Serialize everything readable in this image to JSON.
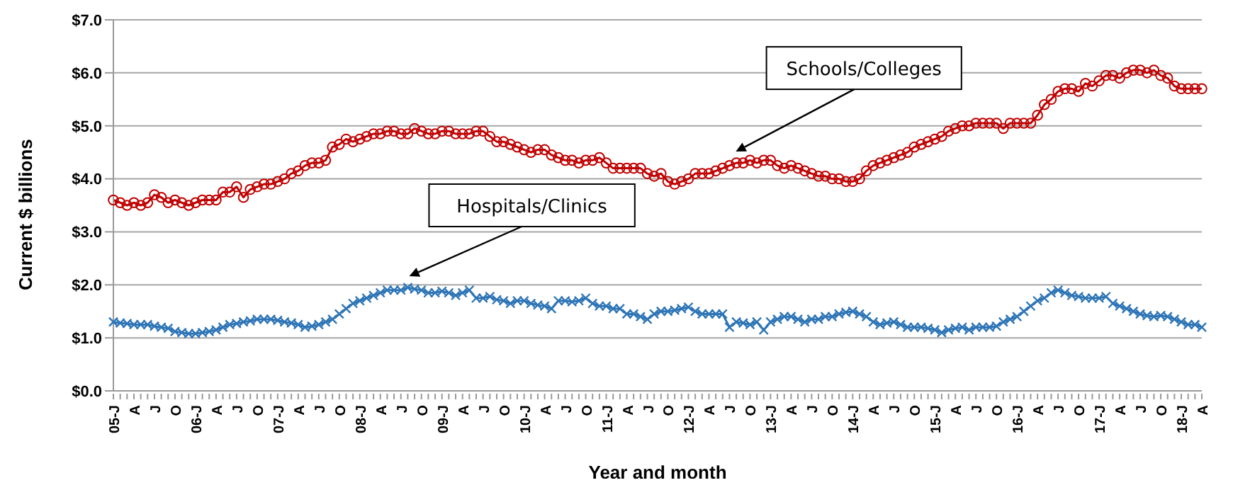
{
  "chart_data": {
    "type": "line",
    "xlabel": "Year and month",
    "ylabel": "Current $ billions",
    "categories": [
      "05-J",
      null,
      null,
      "A",
      null,
      null,
      "J",
      null,
      null,
      "O",
      null,
      null,
      "06-J",
      null,
      null,
      "A",
      null,
      null,
      "J",
      null,
      null,
      "O",
      null,
      null,
      "07-J",
      null,
      null,
      "A",
      null,
      null,
      "J",
      null,
      null,
      "O",
      null,
      null,
      "08-J",
      null,
      null,
      "A",
      null,
      null,
      "J",
      null,
      null,
      "O",
      null,
      null,
      "09-J",
      null,
      null,
      "A",
      null,
      null,
      "J",
      null,
      null,
      "O",
      null,
      null,
      "10-J",
      null,
      null,
      "A",
      null,
      null,
      "J",
      null,
      null,
      "O",
      null,
      null,
      "11-J",
      null,
      null,
      "A",
      null,
      null,
      "J",
      null,
      null,
      "O",
      null,
      null,
      "12-J",
      null,
      null,
      "A",
      null,
      null,
      "J",
      null,
      null,
      "O",
      null,
      null,
      "13-J",
      null,
      null,
      "A",
      null,
      null,
      "J",
      null,
      null,
      "O",
      null,
      null,
      "14-J",
      null,
      null,
      "A",
      null,
      null,
      "J",
      null,
      null,
      "O",
      null,
      null,
      "15-J",
      null,
      null,
      "A",
      null,
      null,
      "J",
      null,
      null,
      "O",
      null,
      null,
      "16-J",
      null,
      null,
      "A",
      null,
      null,
      "J",
      null,
      null,
      "O",
      null,
      null,
      "17-J",
      null,
      null,
      "A",
      null,
      null,
      "J",
      null,
      null,
      "O",
      null,
      null,
      "18-J",
      null,
      null,
      "A"
    ],
    "series": [
      {
        "name": "Schools/Colleges",
        "color": "#c00000",
        "marker": "circle",
        "values": [
          3.6,
          3.55,
          3.5,
          3.55,
          3.5,
          3.55,
          3.7,
          3.65,
          3.55,
          3.6,
          3.55,
          3.5,
          3.55,
          3.6,
          3.6,
          3.6,
          3.75,
          3.75,
          3.85,
          3.65,
          3.8,
          3.85,
          3.9,
          3.9,
          3.95,
          4.0,
          4.1,
          4.15,
          4.25,
          4.3,
          4.3,
          4.35,
          4.6,
          4.65,
          4.75,
          4.7,
          4.75,
          4.8,
          4.85,
          4.85,
          4.9,
          4.9,
          4.85,
          4.85,
          4.95,
          4.9,
          4.85,
          4.85,
          4.9,
          4.9,
          4.85,
          4.85,
          4.85,
          4.9,
          4.9,
          4.8,
          4.7,
          4.7,
          4.65,
          4.6,
          4.55,
          4.5,
          4.55,
          4.55,
          4.45,
          4.4,
          4.35,
          4.35,
          4.3,
          4.35,
          4.35,
          4.4,
          4.3,
          4.2,
          4.2,
          4.2,
          4.2,
          4.2,
          4.1,
          4.05,
          4.1,
          3.95,
          3.9,
          3.95,
          4.0,
          4.1,
          4.1,
          4.1,
          4.15,
          4.2,
          4.25,
          4.3,
          4.3,
          4.35,
          4.3,
          4.35,
          4.35,
          4.25,
          4.2,
          4.25,
          4.2,
          4.15,
          4.1,
          4.05,
          4.05,
          4.0,
          4.0,
          3.95,
          3.95,
          4.0,
          4.15,
          4.25,
          4.3,
          4.35,
          4.4,
          4.45,
          4.5,
          4.6,
          4.65,
          4.7,
          4.75,
          4.8,
          4.9,
          4.95,
          5.0,
          5.0,
          5.05,
          5.05,
          5.05,
          5.05,
          4.95,
          5.05,
          5.05,
          5.05,
          5.05,
          5.2,
          5.4,
          5.5,
          5.65,
          5.7,
          5.7,
          5.65,
          5.8,
          5.75,
          5.85,
          5.95,
          5.95,
          5.9,
          6.0,
          6.05,
          6.05,
          6.0,
          6.05,
          5.95,
          5.9,
          5.75,
          5.7,
          5.7,
          5.7,
          5.7
        ]
      },
      {
        "name": "Hospitals/Clinics",
        "color": "#2e75b6",
        "marker": "cross",
        "values": [
          1.3,
          1.28,
          1.27,
          1.25,
          1.25,
          1.25,
          1.22,
          1.2,
          1.18,
          1.12,
          1.1,
          1.08,
          1.08,
          1.1,
          1.12,
          1.15,
          1.2,
          1.25,
          1.27,
          1.3,
          1.32,
          1.35,
          1.35,
          1.35,
          1.33,
          1.3,
          1.28,
          1.25,
          1.2,
          1.22,
          1.25,
          1.3,
          1.35,
          1.45,
          1.55,
          1.65,
          1.7,
          1.75,
          1.8,
          1.85,
          1.9,
          1.9,
          1.9,
          1.95,
          1.92,
          1.9,
          1.85,
          1.85,
          1.88,
          1.85,
          1.8,
          1.85,
          1.9,
          1.75,
          1.75,
          1.78,
          1.72,
          1.7,
          1.65,
          1.7,
          1.7,
          1.65,
          1.62,
          1.6,
          1.55,
          1.7,
          1.7,
          1.68,
          1.7,
          1.75,
          1.65,
          1.6,
          1.6,
          1.55,
          1.55,
          1.45,
          1.45,
          1.4,
          1.35,
          1.45,
          1.5,
          1.5,
          1.52,
          1.55,
          1.58,
          1.5,
          1.45,
          1.45,
          1.45,
          1.45,
          1.2,
          1.3,
          1.28,
          1.25,
          1.3,
          1.15,
          1.3,
          1.35,
          1.4,
          1.4,
          1.35,
          1.3,
          1.35,
          1.35,
          1.4,
          1.4,
          1.45,
          1.48,
          1.5,
          1.45,
          1.4,
          1.3,
          1.25,
          1.28,
          1.3,
          1.25,
          1.2,
          1.2,
          1.2,
          1.18,
          1.15,
          1.1,
          1.15,
          1.18,
          1.2,
          1.15,
          1.2,
          1.2,
          1.2,
          1.22,
          1.3,
          1.35,
          1.4,
          1.5,
          1.6,
          1.7,
          1.75,
          1.85,
          1.9,
          1.85,
          1.8,
          1.78,
          1.75,
          1.75,
          1.75,
          1.78,
          1.65,
          1.6,
          1.55,
          1.5,
          1.45,
          1.42,
          1.4,
          1.42,
          1.4,
          1.35,
          1.3,
          1.25,
          1.25,
          1.2
        ]
      }
    ],
    "ylim": [
      0,
      7
    ],
    "yticks": [
      {
        "value": 0,
        "label": "$0.0"
      },
      {
        "value": 1,
        "label": "$1.0"
      },
      {
        "value": 2,
        "label": "$2.0"
      },
      {
        "value": 3,
        "label": "$3.0"
      },
      {
        "value": 4,
        "label": "$4.0"
      },
      {
        "value": 5,
        "label": "$5.0"
      },
      {
        "value": 6,
        "label": "$6.0"
      },
      {
        "value": 7,
        "label": "$7.0"
      }
    ],
    "grid": "y"
  }
}
